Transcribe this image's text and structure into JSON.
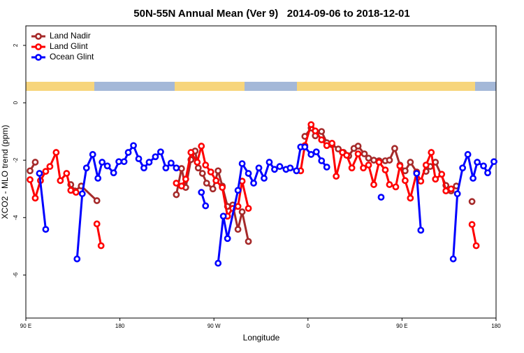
{
  "chart_data": {
    "type": "line",
    "title": "50N-55N Annual Mean (Ver 9)   2014-09-06 to 2018-12-01",
    "x_label": "Longitude",
    "y_label": "XCO2 - MLO trend (ppm)",
    "xlim": [
      90,
      540
    ],
    "ylim": [
      -7.5,
      2.68
    ],
    "xticks": [
      {
        "value": 90,
        "label": "90 E"
      },
      {
        "value": 180,
        "label": "180"
      },
      {
        "value": 270,
        "label": "90 W"
      },
      {
        "value": 360,
        "label": "0"
      },
      {
        "value": 450,
        "label": "90 E"
      },
      {
        "value": 540,
        "label": "180"
      }
    ],
    "yticks": [
      -6,
      -4,
      -2,
      0,
      2
    ],
    "legend": "upper left",
    "series": [
      {
        "name": "Land Nadir",
        "color": "#a52a2a",
        "x": [
          94,
          99,
          null,
          133,
          137,
          143,
          158,
          null,
          234,
          239,
          243,
          248,
          252,
          255,
          259,
          263,
          269,
          274,
          278,
          283,
          288,
          293,
          297,
          303,
          null,
          357,
          363,
          367,
          373,
          378,
          383,
          389,
          394,
          399,
          404,
          408,
          414,
          418,
          423,
          428,
          434,
          438,
          443,
          448,
          453,
          458,
          464,
          null,
          473,
          477,
          482,
          492,
          497,
          502,
          null,
          517
        ],
        "values": [
          -2.37,
          -2.07,
          null,
          -2.85,
          -3.07,
          -2.9,
          -3.41,
          null,
          -3.2,
          -2.29,
          -2.95,
          -1.98,
          -1.68,
          -2.27,
          -2.46,
          -2.8,
          -3.0,
          -2.37,
          -2.9,
          -3.61,
          -3.56,
          -4.41,
          -3.8,
          -4.83,
          null,
          -1.17,
          -0.88,
          -1.15,
          -1.0,
          -1.39,
          -1.46,
          -1.61,
          -1.73,
          -1.85,
          -1.59,
          -1.51,
          -1.78,
          -1.93,
          -2.0,
          -2.02,
          -2.02,
          -2.0,
          -1.59,
          -2.17,
          -2.37,
          -2.07,
          -2.41,
          null,
          -2.39,
          -2.22,
          -2.07,
          -2.88,
          -3.07,
          -2.9,
          null,
          -3.44
        ]
      },
      {
        "name": "Land Glint",
        "color": "#ff0000",
        "x": [
          94,
          99,
          104,
          109,
          113,
          119,
          123,
          129,
          133,
          138,
          null,
          158,
          162,
          null,
          234,
          239,
          243,
          248,
          254,
          258,
          262,
          267,
          272,
          278,
          283,
          288,
          293,
          297,
          303,
          null,
          353,
          357,
          363,
          367,
          373,
          378,
          383,
          387,
          393,
          397,
          402,
          408,
          413,
          418,
          423,
          428,
          434,
          438,
          444,
          448,
          453,
          458,
          464,
          468,
          473,
          478,
          482,
          488,
          492,
          497,
          null,
          517,
          521
        ],
        "values": [
          -2.68,
          -3.32,
          -2.71,
          -2.39,
          -2.22,
          -1.73,
          -2.71,
          -2.46,
          -3.05,
          -3.12,
          null,
          -4.22,
          -4.98,
          null,
          -2.8,
          -2.9,
          -2.66,
          -1.73,
          -2.07,
          -1.51,
          -2.17,
          -2.41,
          -2.71,
          -2.95,
          -3.95,
          -3.68,
          -3.61,
          -2.73,
          -3.68,
          null,
          -2.37,
          -1.49,
          -0.76,
          -0.98,
          -1.29,
          -1.49,
          -1.41,
          -2.56,
          -1.73,
          -1.83,
          -2.27,
          -1.78,
          -2.27,
          -2.17,
          -2.85,
          -2.07,
          -2.34,
          -2.85,
          -2.93,
          -2.2,
          -2.71,
          -3.32,
          -2.44,
          -2.73,
          -2.17,
          -1.73,
          -2.66,
          -2.49,
          -3.07,
          -3.0,
          null,
          -4.24,
          -4.98
        ]
      },
      {
        "name": "Ocean Glint",
        "color": "#0000ff",
        "x": [
          103,
          109,
          null,
          139,
          144,
          148,
          154,
          159,
          163,
          168,
          174,
          179,
          184,
          188,
          193,
          198,
          203,
          208,
          214,
          219,
          224,
          229,
          234,
          null,
          258,
          262,
          null,
          274,
          279,
          283,
          293,
          297,
          303,
          308,
          313,
          318,
          323,
          328,
          333,
          339,
          343,
          349,
          353,
          357,
          363,
          368,
          373,
          378,
          null,
          430,
          null,
          464,
          468,
          null,
          499,
          503,
          508,
          513,
          518,
          522,
          528,
          532,
          538
        ],
        "values": [
          -2.46,
          -4.41,
          null,
          -5.44,
          -3.17,
          -2.27,
          -1.8,
          -2.63,
          -2.07,
          -2.2,
          -2.44,
          -2.05,
          -2.05,
          -1.73,
          -1.49,
          -1.95,
          -2.27,
          -2.07,
          -1.88,
          -1.71,
          -2.27,
          -2.1,
          -2.27,
          null,
          -3.12,
          -3.59,
          null,
          -5.59,
          -3.95,
          -4.73,
          -3.05,
          -2.12,
          -2.46,
          -2.8,
          -2.27,
          -2.63,
          -2.07,
          -2.32,
          -2.22,
          -2.32,
          -2.27,
          -2.37,
          -1.54,
          -1.54,
          -1.8,
          -1.71,
          -2.02,
          -2.24,
          null,
          -3.29,
          null,
          -2.46,
          -4.44,
          null,
          -5.44,
          -3.17,
          -2.27,
          -1.8,
          -2.63,
          -2.07,
          -2.2,
          -2.44,
          -2.05
        ]
      }
    ]
  }
}
